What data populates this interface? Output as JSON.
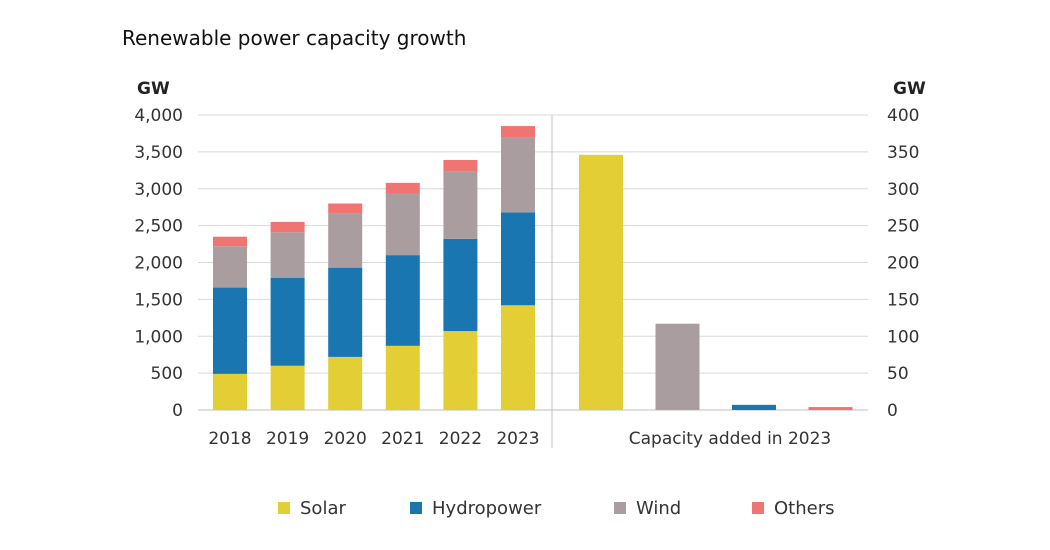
{
  "chart_data": [
    {
      "type": "bar",
      "stacked": true,
      "title": "Renewable power capacity growth",
      "ylabel": "GW",
      "ylim": [
        0,
        4000
      ],
      "yticks": [
        "0",
        "500",
        "1,000",
        "1,500",
        "2,000",
        "2,500",
        "3,000",
        "3,500",
        "4,000"
      ],
      "categories": [
        "2018",
        "2019",
        "2020",
        "2021",
        "2022",
        "2023"
      ],
      "series": [
        {
          "name": "Solar",
          "color": "#e3cf35",
          "values": [
            490,
            600,
            720,
            870,
            1070,
            1420
          ]
        },
        {
          "name": "Hydropower",
          "color": "#1976b0",
          "values": [
            1170,
            1190,
            1210,
            1230,
            1250,
            1260
          ]
        },
        {
          "name": "Wind",
          "color": "#aa9da0",
          "values": [
            560,
            620,
            730,
            830,
            920,
            1010
          ]
        },
        {
          "name": "Others",
          "color": "#f07572",
          "values": [
            130,
            140,
            140,
            150,
            150,
            160
          ]
        }
      ],
      "grid": true,
      "legend": "bottom"
    },
    {
      "type": "bar",
      "xlabel": "Capacity added in 2023",
      "ylabel": "GW",
      "ylim": [
        0,
        400
      ],
      "yticks": [
        "0",
        "50",
        "100",
        "150",
        "200",
        "250",
        "300",
        "350",
        "400"
      ],
      "categories": [
        "Solar",
        "Wind",
        "Hydropower",
        "Others"
      ],
      "values": [
        346,
        117,
        7,
        4
      ],
      "colors": [
        "#e3cf35",
        "#aa9da0",
        "#1976b0",
        "#f07572"
      ],
      "grid": true
    }
  ]
}
